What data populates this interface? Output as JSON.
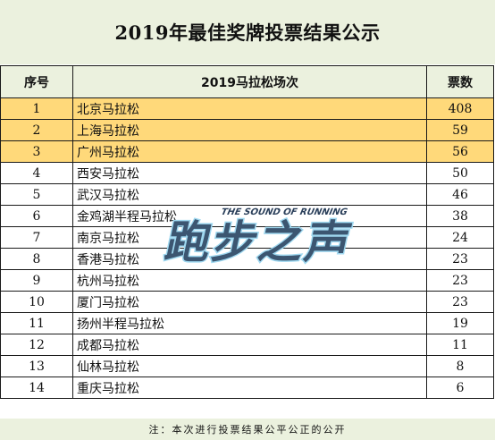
{
  "title": "2019年最佳奖牌投票结果公示",
  "table": {
    "headers": [
      "序号",
      "2019马拉松场次",
      "票数"
    ],
    "rows": [
      {
        "no": "1",
        "name": "北京马拉松",
        "votes": "408",
        "highlight": true
      },
      {
        "no": "2",
        "name": "上海马拉松",
        "votes": "59",
        "highlight": true
      },
      {
        "no": "3",
        "name": "广州马拉松",
        "votes": "56",
        "highlight": true
      },
      {
        "no": "4",
        "name": "西安马拉松",
        "votes": "50",
        "highlight": false
      },
      {
        "no": "5",
        "name": "武汉马拉松",
        "votes": "46",
        "highlight": false
      },
      {
        "no": "6",
        "name": "金鸡湖半程马拉松",
        "votes": "38",
        "highlight": false
      },
      {
        "no": "7",
        "name": "南京马拉松",
        "votes": "24",
        "highlight": false
      },
      {
        "no": "8",
        "name": "香港马拉松",
        "votes": "23",
        "highlight": false
      },
      {
        "no": "9",
        "name": "杭州马拉松",
        "votes": "23",
        "highlight": false
      },
      {
        "no": "10",
        "name": "厦门马拉松",
        "votes": "23",
        "highlight": false
      },
      {
        "no": "11",
        "name": "扬州半程马拉松",
        "votes": "19",
        "highlight": false
      },
      {
        "no": "12",
        "name": "成都马拉松",
        "votes": "11",
        "highlight": false
      },
      {
        "no": "13",
        "name": "仙林马拉松",
        "votes": "8",
        "highlight": false
      },
      {
        "no": "14",
        "name": "重庆马拉松",
        "votes": "6",
        "highlight": false
      }
    ]
  },
  "note": "注：本次进行投票结果公平公正的公开",
  "watermark": {
    "logo_text": "跑步之声",
    "tagline": "THE SOUND OF RUNNING"
  },
  "colors": {
    "header_bg": "#ebf1de",
    "highlight_row": "#ffd97a",
    "border": "#1a1a1a",
    "watermark_fill": "#2a3f5a",
    "watermark_glow": "#9fd8f0"
  }
}
